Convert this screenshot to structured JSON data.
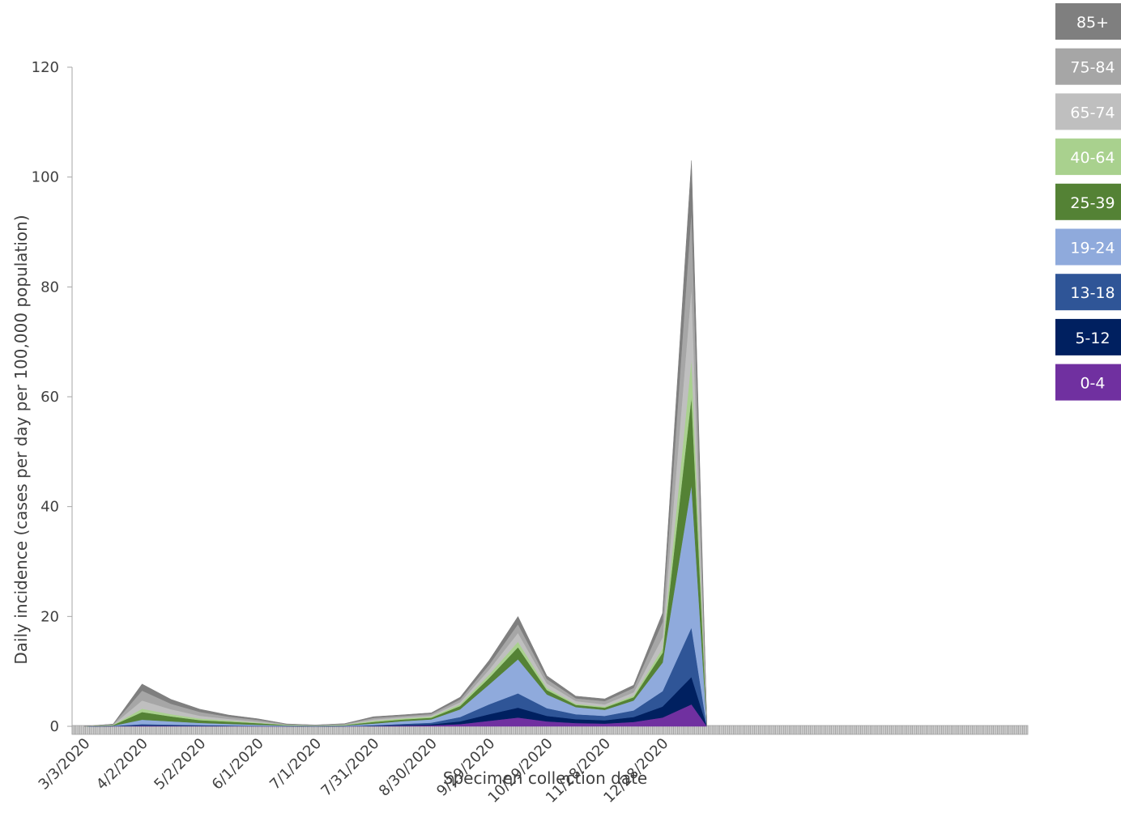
{
  "chart_data": {
    "type": "area",
    "stacked": true,
    "title": "",
    "xlabel": "Specimen collection date",
    "ylabel": "Daily incidence (cases per day per 100,000 population)",
    "ylim": [
      0,
      120
    ],
    "yticks": [
      0,
      20,
      40,
      60,
      80,
      100,
      120
    ],
    "x_tick_labels": [
      "3/3/2020",
      "4/2/2020",
      "5/2/2020",
      "6/1/2020",
      "7/1/2020",
      "7/31/2020",
      "8/30/2020",
      "9/29/2020",
      "10/29/2020",
      "11/28/2020",
      "12/28/2020"
    ],
    "x": [
      "3/3/2020",
      "3/18/2020",
      "4/2/2020",
      "4/17/2020",
      "5/2/2020",
      "5/17/2020",
      "6/1/2020",
      "6/16/2020",
      "7/1/2020",
      "7/16/2020",
      "7/31/2020",
      "8/15/2020",
      "8/30/2020",
      "9/14/2020",
      "9/29/2020",
      "10/14/2020",
      "10/29/2020",
      "11/13/2020",
      "11/28/2020",
      "12/13/2020",
      "12/28/2020",
      "1/12/2021",
      "1/20/2021"
    ],
    "legend_position": "right",
    "series": [
      {
        "name": "0-4",
        "color": "#7030a0",
        "values": [
          0,
          0.02,
          0.1,
          0.08,
          0.06,
          0.04,
          0.02,
          0.01,
          0.01,
          0.01,
          0.05,
          0.12,
          0.18,
          0.4,
          1.0,
          1.6,
          0.9,
          0.6,
          0.5,
          0.8,
          1.6,
          4.0,
          0
        ]
      },
      {
        "name": "5-12",
        "color": "#002060",
        "values": [
          0,
          0.02,
          0.1,
          0.08,
          0.06,
          0.04,
          0.02,
          0.01,
          0.01,
          0.01,
          0.05,
          0.12,
          0.18,
          0.5,
          1.2,
          1.8,
          1.0,
          0.7,
          0.6,
          0.9,
          2.0,
          5.0,
          0
        ]
      },
      {
        "name": "13-18",
        "color": "#2f5597",
        "values": [
          0,
          0.03,
          0.2,
          0.15,
          0.1,
          0.07,
          0.04,
          0.02,
          0.01,
          0.02,
          0.1,
          0.2,
          0.3,
          0.8,
          1.8,
          2.6,
          1.4,
          0.9,
          0.8,
          1.2,
          2.8,
          9.0,
          0
        ]
      },
      {
        "name": "19-24",
        "color": "#8faadc",
        "values": [
          0,
          0.05,
          0.8,
          0.6,
          0.4,
          0.3,
          0.2,
          0.1,
          0.05,
          0.1,
          0.3,
          0.5,
          0.6,
          1.4,
          3.6,
          6.2,
          2.5,
          1.3,
          1.1,
          1.8,
          5.2,
          26.0,
          0
        ]
      },
      {
        "name": "25-39",
        "color": "#548235",
        "values": [
          0,
          0.1,
          1.4,
          0.9,
          0.5,
          0.4,
          0.3,
          0.1,
          0.05,
          0.1,
          0.3,
          0.3,
          0.3,
          0.6,
          1.2,
          2.2,
          0.8,
          0.4,
          0.4,
          0.6,
          1.8,
          16.0,
          0
        ]
      },
      {
        "name": "40-64",
        "color": "#a9d18e",
        "values": [
          0,
          0.05,
          0.6,
          0.4,
          0.3,
          0.2,
          0.1,
          0.05,
          0.02,
          0.05,
          0.2,
          0.2,
          0.2,
          0.3,
          0.6,
          1.0,
          0.4,
          0.2,
          0.2,
          0.3,
          0.8,
          7.0,
          0
        ]
      },
      {
        "name": "65-74",
        "color": "#bfbfbf",
        "values": [
          0,
          0.05,
          1.5,
          0.9,
          0.5,
          0.3,
          0.2,
          0.05,
          0.03,
          0.06,
          0.25,
          0.2,
          0.2,
          0.4,
          0.9,
          1.6,
          0.8,
          0.5,
          0.4,
          0.6,
          2.0,
          13.0,
          0
        ]
      },
      {
        "name": "75-84",
        "color": "#a6a6a6",
        "values": [
          0,
          0.05,
          1.8,
          1.0,
          0.7,
          0.4,
          0.3,
          0.05,
          0.04,
          0.08,
          0.3,
          0.25,
          0.3,
          0.5,
          0.9,
          1.6,
          0.8,
          0.5,
          0.6,
          0.8,
          2.8,
          14.0,
          0
        ]
      },
      {
        "name": "85+",
        "color": "#7f7f7f",
        "values": [
          0,
          0.05,
          1.2,
          0.8,
          0.5,
          0.3,
          0.2,
          0.05,
          0.03,
          0.06,
          0.2,
          0.2,
          0.2,
          0.4,
          0.8,
          1.4,
          0.6,
          0.4,
          0.4,
          0.5,
          1.6,
          9.0,
          0
        ]
      }
    ]
  }
}
